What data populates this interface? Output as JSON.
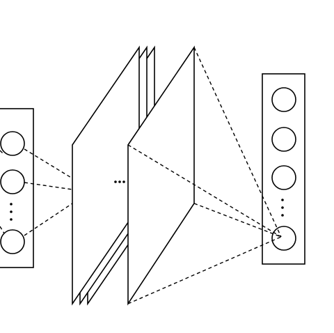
{
  "diagram": {
    "description_kind": "neural-network-schematic",
    "colors": {
      "stroke": "#000000",
      "background": "#ffffff"
    },
    "input_column": {
      "visible_node_count": 3,
      "has_vertical_ellipsis": true
    },
    "feature_maps": {
      "stacked_planes": 3,
      "has_horizontal_ellipsis": true,
      "final_plane": 1
    },
    "output_column": {
      "visible_node_count": 4,
      "has_vertical_ellipsis": true
    },
    "connections": {
      "input_to_maps": "dashed",
      "final_map_to_output_node": "dashed"
    },
    "ellipsis_glyph_horizontal": "…",
    "ellipsis_glyph_vertical": "⋮"
  }
}
